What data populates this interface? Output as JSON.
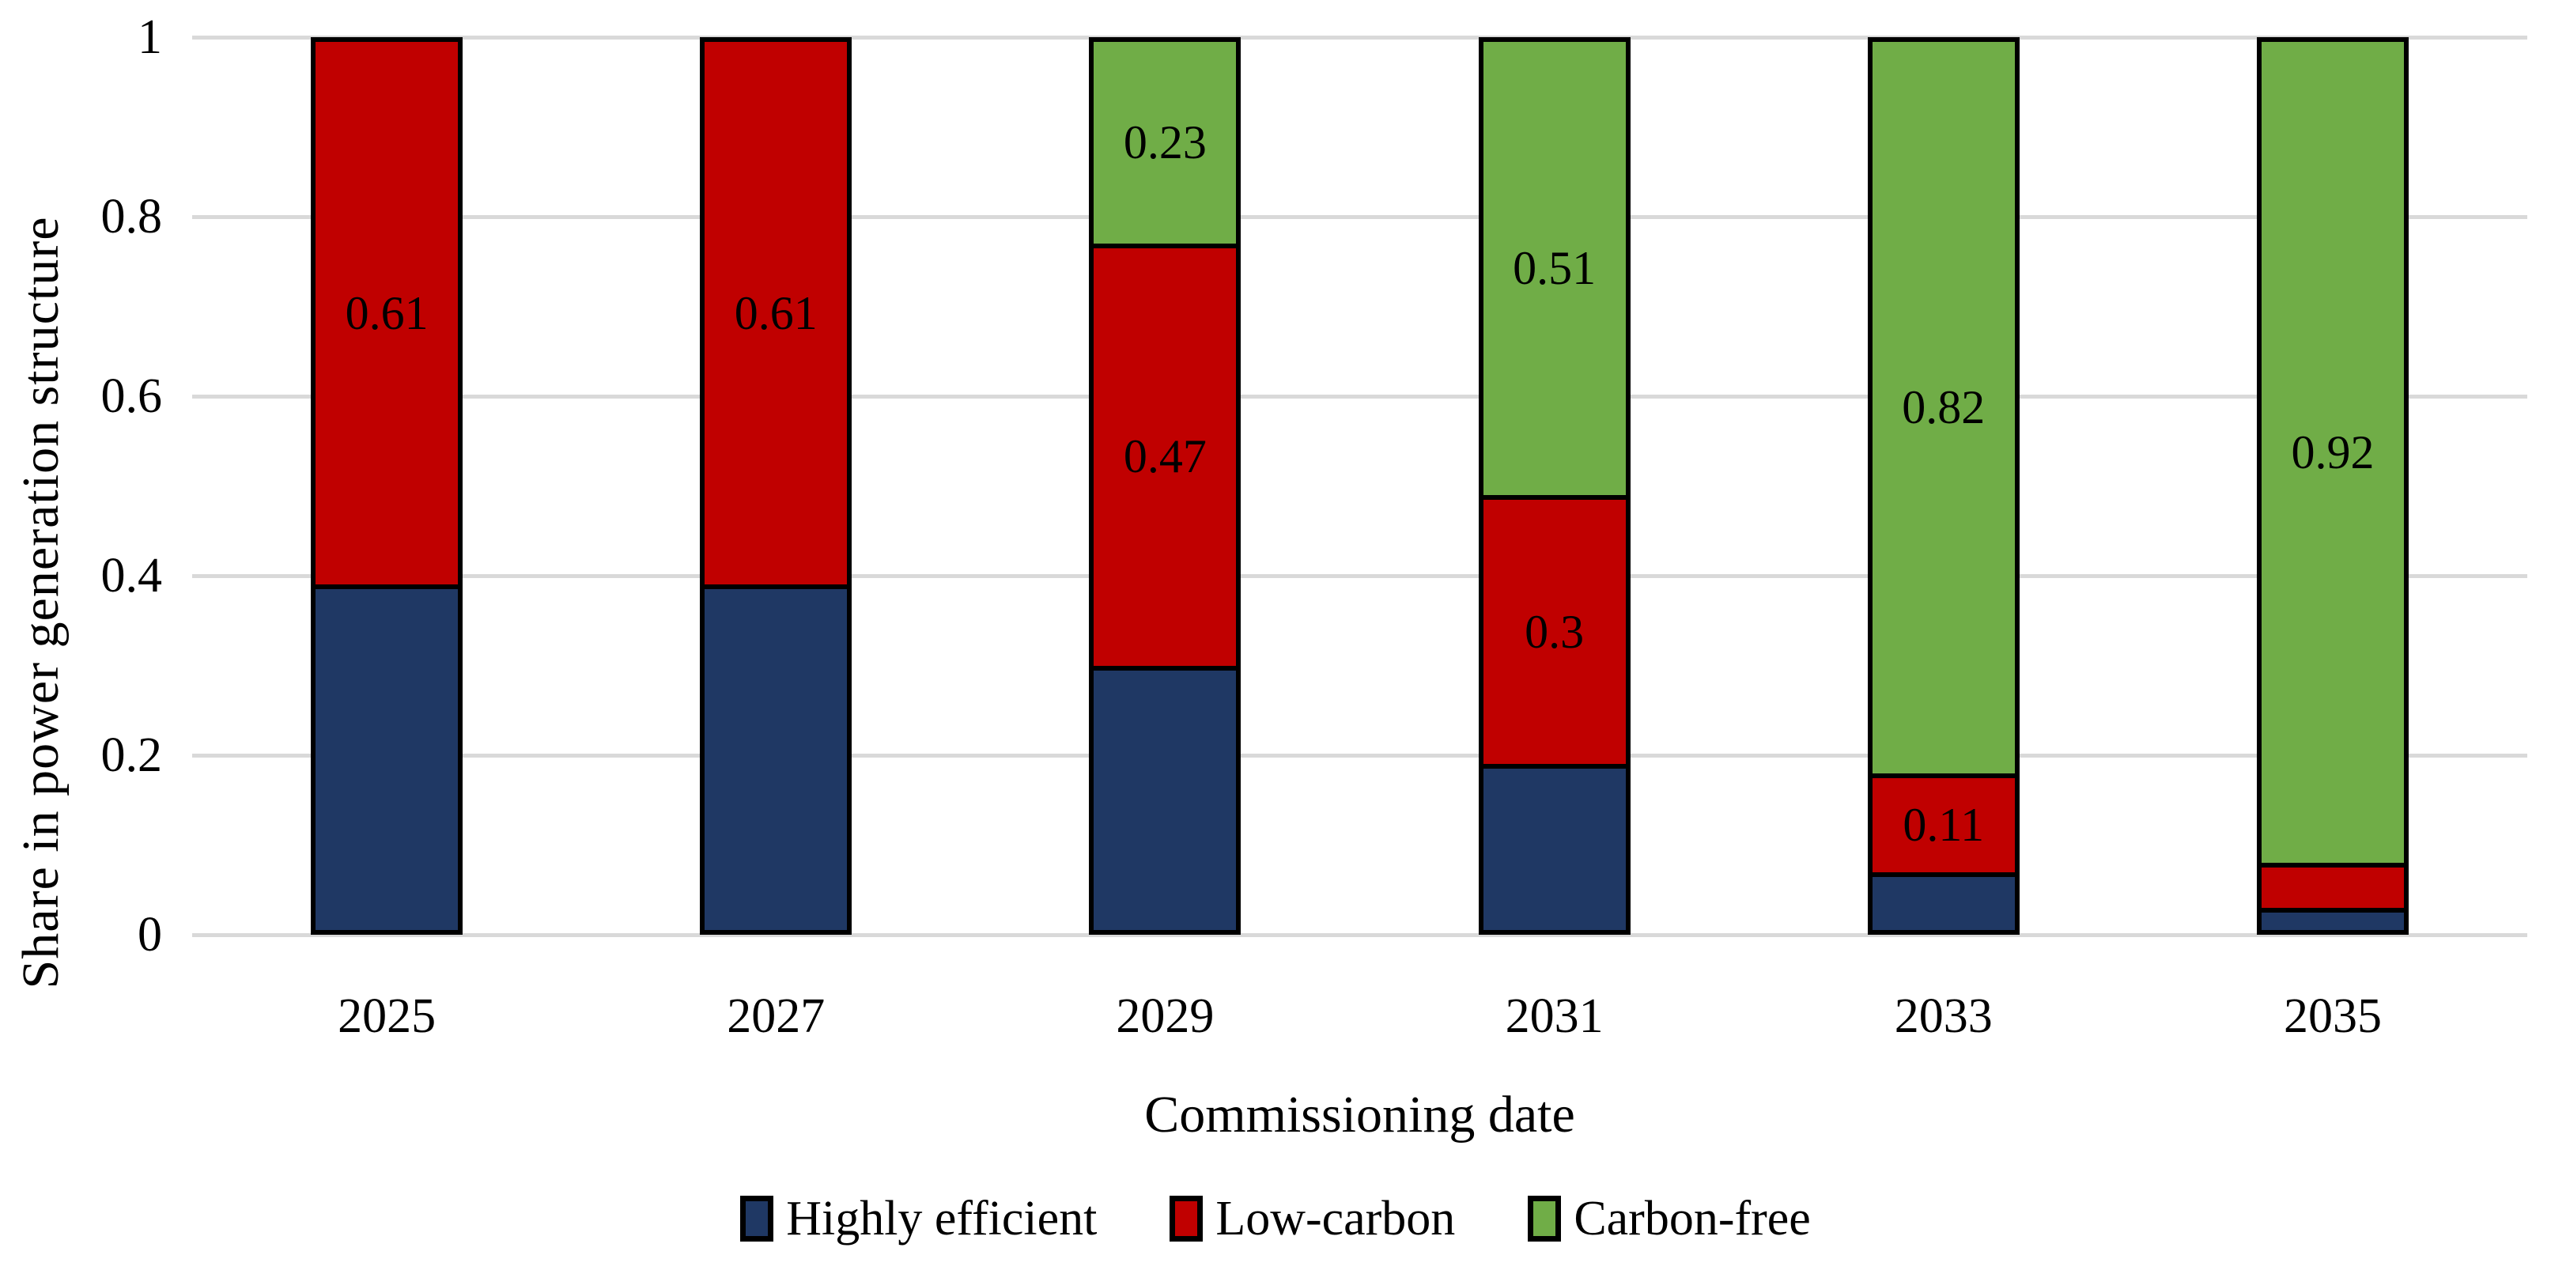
{
  "chart_data": {
    "type": "bar",
    "stacked": true,
    "categories": [
      "2025",
      "2027",
      "2029",
      "2031",
      "2033",
      "2035"
    ],
    "series": [
      {
        "name": "Highly efficient",
        "color": "#1F3864",
        "values": [
          0.39,
          0.39,
          0.3,
          0.19,
          0.07,
          0.03
        ],
        "labels": [
          "",
          "",
          "",
          "",
          "",
          ""
        ]
      },
      {
        "name": "Low-carbon",
        "color": "#C00000",
        "values": [
          0.61,
          0.61,
          0.47,
          0.3,
          0.11,
          0.05
        ],
        "labels": [
          "0.61",
          "0.61",
          "0.47",
          "0.3",
          "0.11",
          ""
        ]
      },
      {
        "name": "Carbon-free",
        "color": "#70AD47",
        "values": [
          0,
          0,
          0.23,
          0.51,
          0.82,
          0.92
        ],
        "labels": [
          "",
          "",
          "0.23",
          "0.51",
          "0.82",
          "0.92"
        ]
      }
    ],
    "xlabel": "Commissioning date",
    "ylabel": "Share in power generation structure",
    "ylim": [
      0,
      1
    ],
    "y_ticks": [
      "0",
      "0.2",
      "0.4",
      "0.6",
      "0.8",
      "1"
    ],
    "grid": true,
    "gridline_color": "#D9D9D9",
    "bar_border_color": "#000000",
    "legend_position": "bottom"
  }
}
